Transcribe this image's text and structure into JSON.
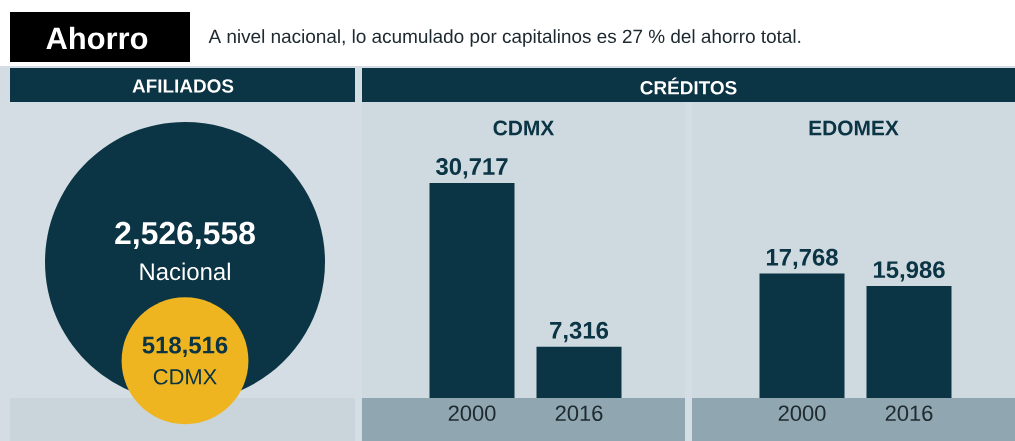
{
  "chart_data": [
    {
      "type": "other",
      "title": "Ahorro",
      "subtitle": "A nivel nacional, lo acumulado por capitalinos es 27 % del ahorro total."
    },
    {
      "type": "other",
      "title": "AFILIADOS",
      "categories": [
        "Nacional",
        "CDMX"
      ],
      "values": [
        2526558,
        518516
      ],
      "value_labels": [
        "2,526,558",
        "518,516"
      ],
      "colors": [
        "#0b3444",
        "#efb521"
      ]
    },
    {
      "type": "bar",
      "title": "CDMX",
      "annotations": [
        "CRÉDITOS"
      ],
      "categories": [
        "2000",
        "2016"
      ],
      "series": [
        {
          "color": "#0b3444",
          "values": [
            30717,
            7316
          ],
          "value_labels": [
            "30,717",
            "7,316"
          ]
        }
      ]
    },
    {
      "type": "bar",
      "title": "EDOMEX",
      "categories": [
        "2000",
        "2016"
      ],
      "series": [
        {
          "color": "#0b3444",
          "values": [
            17768,
            15986
          ],
          "value_labels": [
            "17,768",
            "15,986"
          ]
        }
      ]
    }
  ]
}
